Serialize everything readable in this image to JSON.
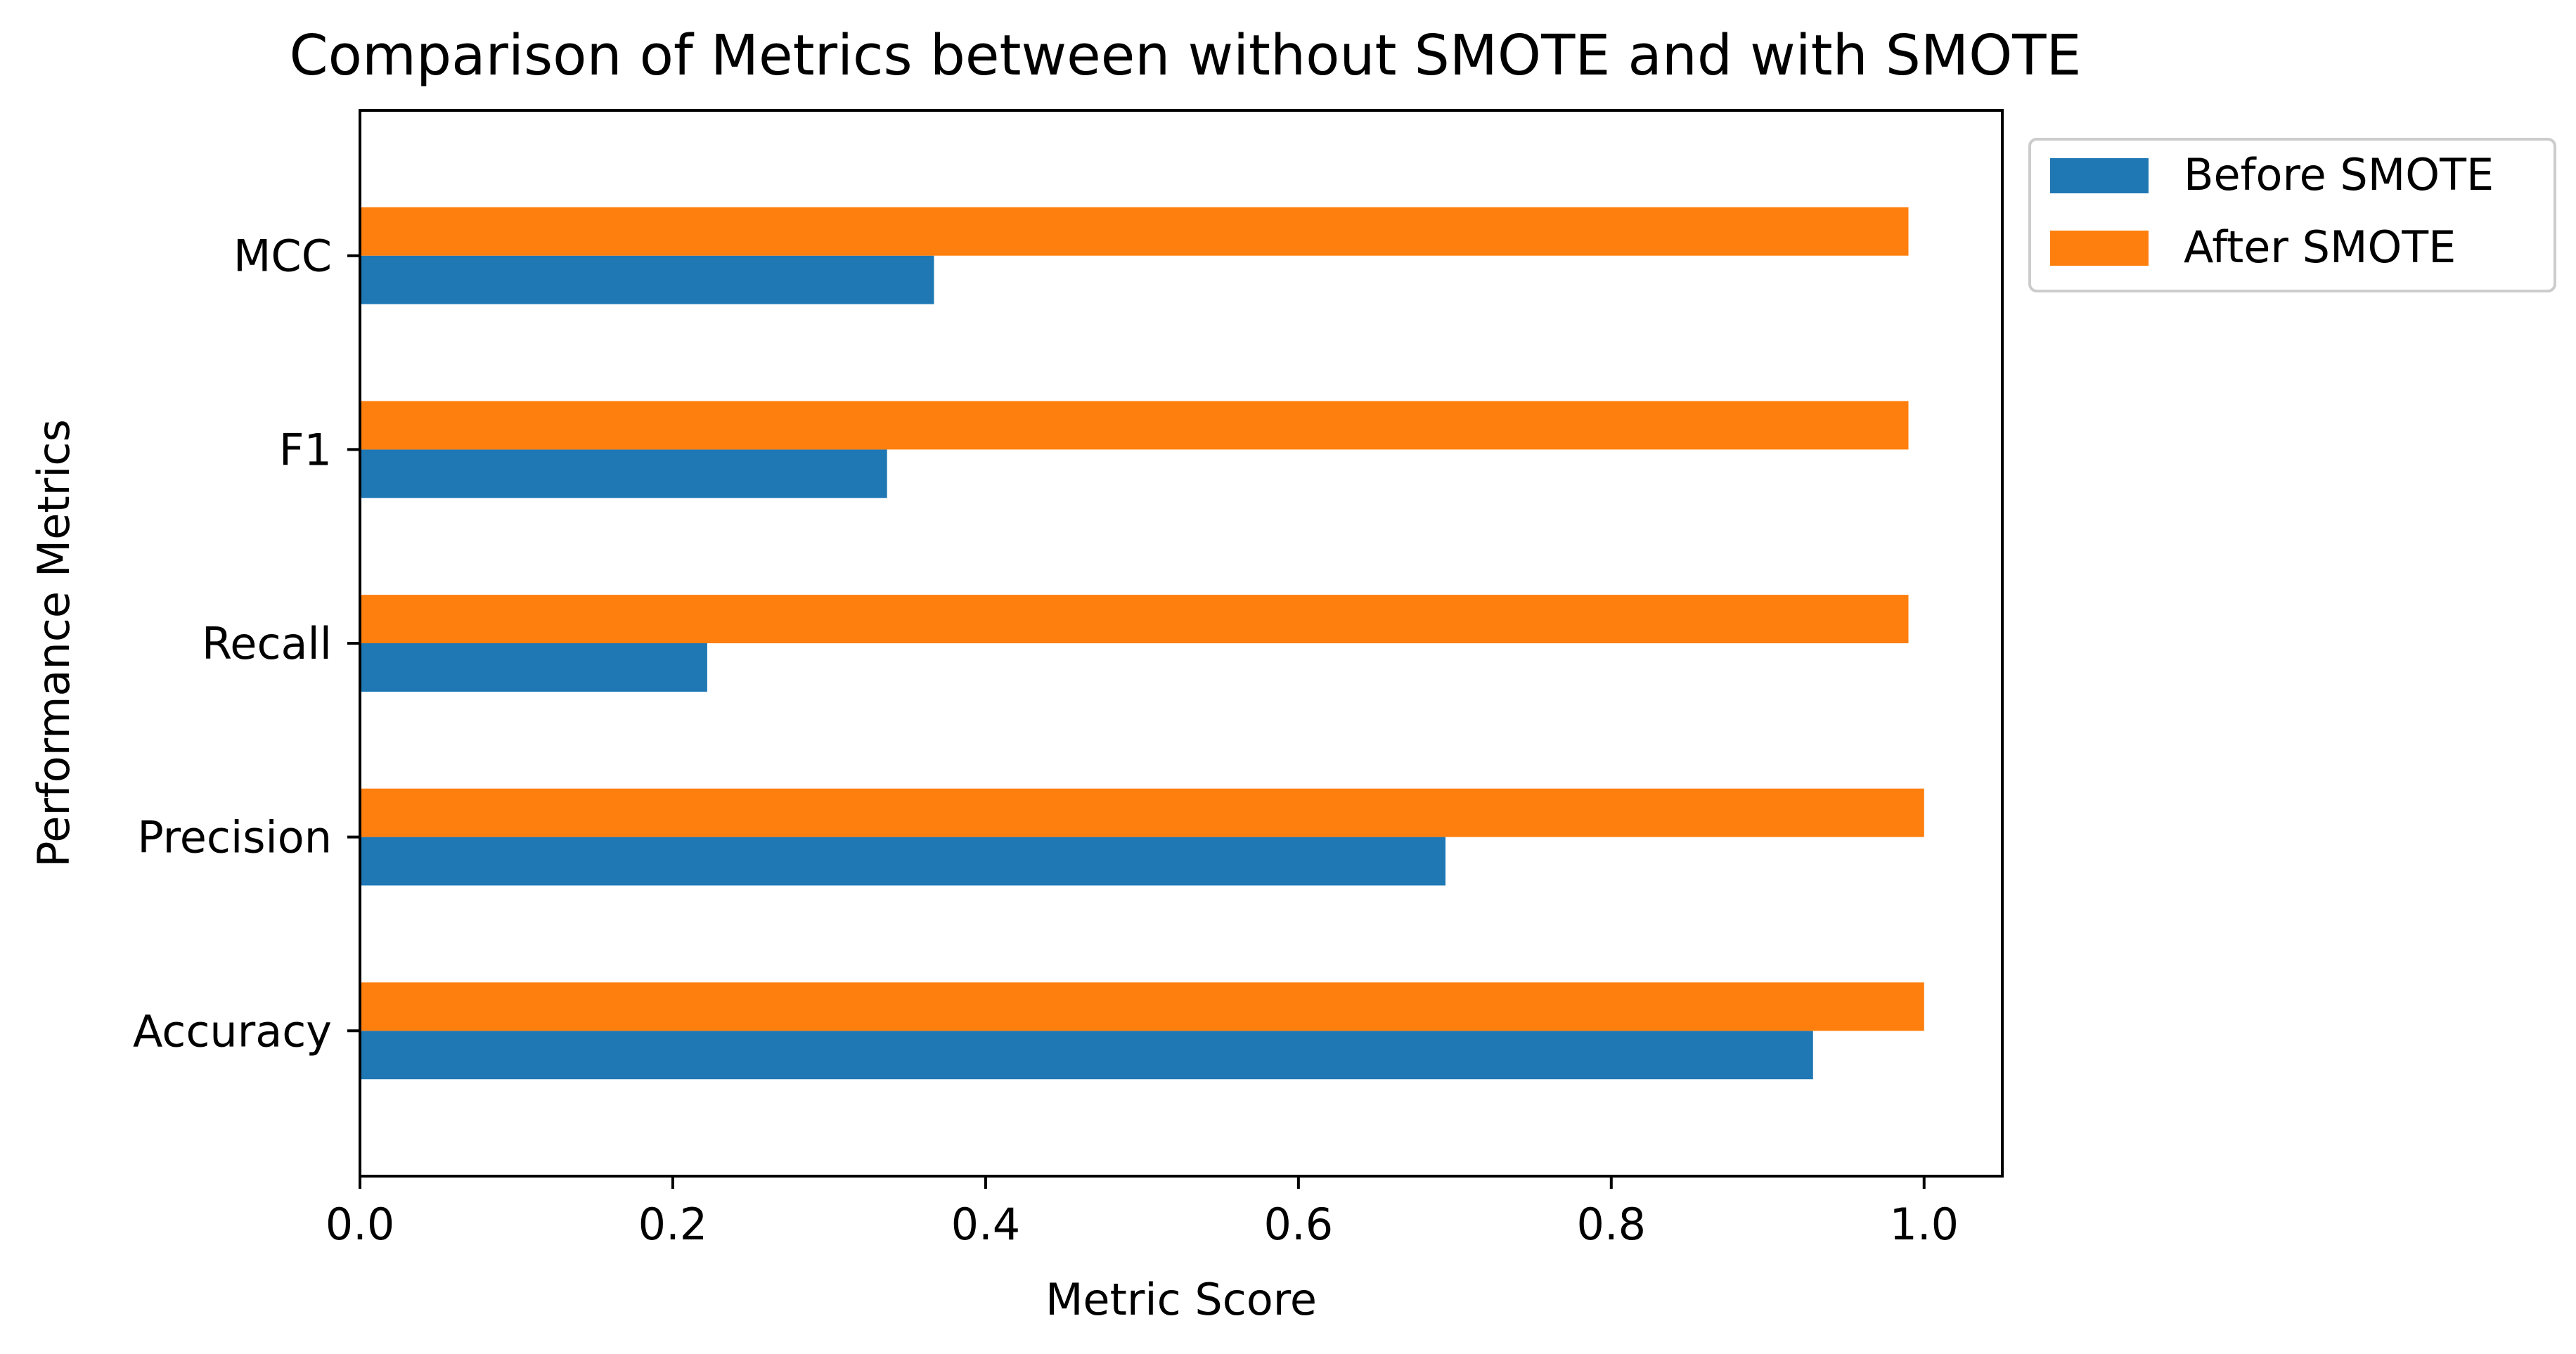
{
  "chart_data": {
    "type": "bar",
    "orientation": "horizontal",
    "title": "Comparison of Metrics between without SMOTE and with SMOTE",
    "xlabel": "Metric Score",
    "ylabel": "Performance Metrics",
    "xlim": [
      0,
      1.05
    ],
    "xticks": [
      0.0,
      0.2,
      0.4,
      0.6,
      0.8,
      1.0
    ],
    "xtick_labels": [
      "0.0",
      "0.2",
      "0.4",
      "0.6",
      "0.8",
      "1.0"
    ],
    "grid": false,
    "legend_position": "outside-top-right",
    "categories": [
      "Accuracy",
      "Precision",
      "Recall",
      "F1",
      "MCC"
    ],
    "series": [
      {
        "name": "Before SMOTE",
        "color": "#1f77b4",
        "values": [
          0.929,
          0.694,
          0.222,
          0.337,
          0.367
        ]
      },
      {
        "name": "After SMOTE",
        "color": "#ff7f0e",
        "values": [
          1.0,
          1.0,
          0.99,
          0.99,
          0.99
        ]
      }
    ]
  }
}
